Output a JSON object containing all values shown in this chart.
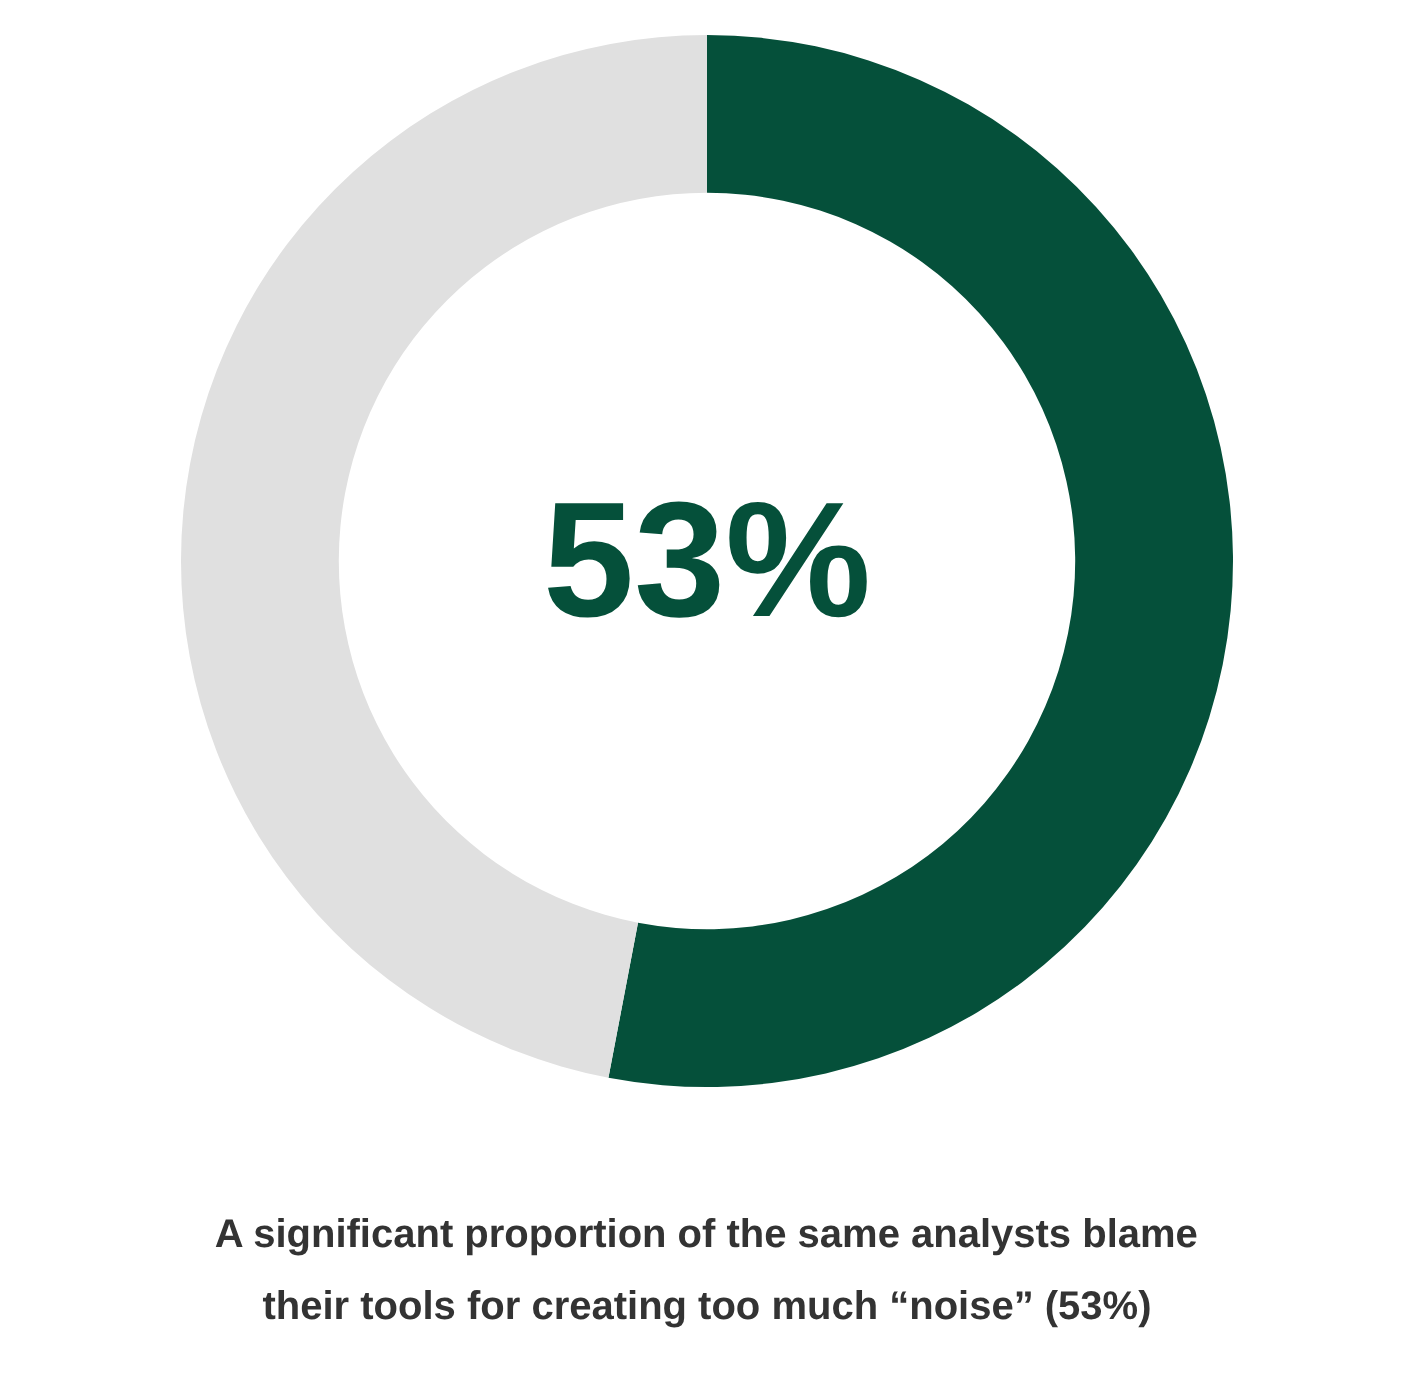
{
  "chart_data": {
    "type": "donut",
    "categories": [
      null,
      null
    ],
    "values": [
      53,
      47
    ],
    "colors": [
      "#05503a",
      "#e0e0e0"
    ],
    "value_labels": [
      "53%",
      null
    ],
    "annotations": [
      "A significant proportion of the same analysts blame their tools for creating too much “noise” (53%)"
    ]
  }
}
